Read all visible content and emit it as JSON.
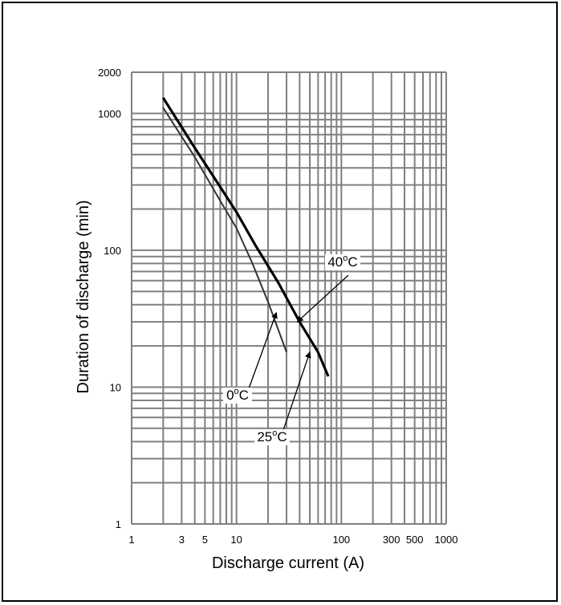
{
  "chart_data": {
    "type": "line",
    "x_scale": "log",
    "y_scale": "log",
    "xlim": [
      1,
      1000
    ],
    "ylim": [
      1,
      2000
    ],
    "xlabel": "Discharge current (A)",
    "ylabel": "Duration of discharge (min)",
    "x_tick_labels": [
      {
        "value": 1,
        "label": "1"
      },
      {
        "value": 3,
        "label": "3"
      },
      {
        "value": 5,
        "label": "5"
      },
      {
        "value": 10,
        "label": "10"
      },
      {
        "value": 100,
        "label": "100"
      },
      {
        "value": 300,
        "label": "300"
      },
      {
        "value": 500,
        "label": "500"
      },
      {
        "value": 1000,
        "label": "1000"
      }
    ],
    "y_tick_labels": [
      {
        "value": 1,
        "label": "1"
      },
      {
        "value": 10,
        "label": "10"
      },
      {
        "value": 100,
        "label": "100"
      },
      {
        "value": 1000,
        "label": "1000"
      },
      {
        "value": 2000,
        "label": "2000"
      }
    ],
    "grid": true,
    "series": [
      {
        "name": "0°C",
        "color": "#333333",
        "width": 2,
        "x": [
          2,
          4,
          7,
          10,
          14,
          20,
          30
        ],
        "y": [
          1100,
          480,
          230,
          145,
          82,
          42,
          18
        ]
      },
      {
        "name": "25°C",
        "color": "#000000",
        "width": 3,
        "x": [
          2,
          4,
          7,
          10,
          15,
          25,
          40,
          60,
          75
        ],
        "y": [
          1300,
          560,
          290,
          190,
          110,
          58,
          30,
          18,
          12
        ]
      },
      {
        "name": "40°C",
        "color": "#000000",
        "width": 3,
        "x": [
          2,
          4,
          7,
          10,
          15,
          25,
          40,
          60,
          75
        ],
        "y": [
          1300,
          560,
          290,
          190,
          110,
          58,
          30,
          18,
          12
        ]
      }
    ],
    "annotations": [
      {
        "series": 0,
        "base": "0",
        "sup": "o",
        "unit": "C",
        "arrow_to": [
          24,
          35
        ]
      },
      {
        "series": 1,
        "base": "25",
        "sup": "o",
        "unit": "C",
        "arrow_to": [
          50,
          18
        ]
      },
      {
        "series": 2,
        "base": "40",
        "sup": "o",
        "unit": "C",
        "arrow_to": [
          38,
          30
        ]
      }
    ]
  }
}
